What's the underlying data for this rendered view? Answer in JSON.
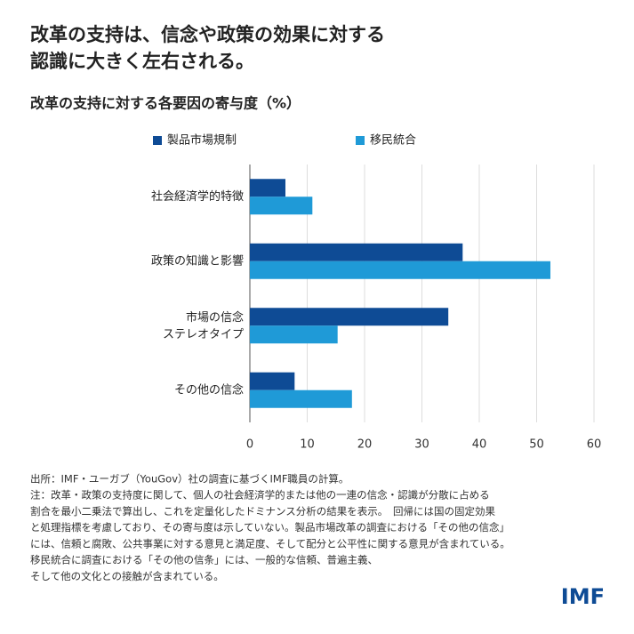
{
  "chart_data": {
    "type": "bar",
    "orientation": "horizontal",
    "title_lines": [
      "改革の支持は、信念や政策の効果に対する",
      "認識に大きく左右される。"
    ],
    "subtitle": "改革の支持に対する各要因の寄与度（%）",
    "categories": [
      "社会経済学的特徴",
      "政策の知識と影響",
      "市場の信念\nステレオタイプ",
      "その他の信念"
    ],
    "series": [
      {
        "name": "製品市場規制",
        "color": "#0e4b95",
        "values": [
          6.2,
          37.1,
          34.6,
          7.8
        ]
      },
      {
        "name": "移民統合",
        "color": "#1f9ad7",
        "values": [
          10.9,
          52.4,
          15.3,
          17.8
        ]
      }
    ],
    "xlim": [
      0,
      60
    ],
    "xticks": [
      0,
      10,
      20,
      30,
      40,
      50,
      60
    ],
    "grid": true,
    "source": "出所：IMF・ユーガブ（YouGov）社の調査に基づくIMF職員の計算。",
    "notes": [
      "注：改革・政策の支持度に関して、個人の社会経済学的または他の一連の信念・認識が分散に占める",
      "割合を最小二乗法で算出し、これを定量化したドミナンス分析の結果を表示。　回帰には国の固定効果",
      "と処理指標を考慮しており、その寄与度は示していない。製品市場改革の調査における「その他の信念」",
      "には、信頼と腐敗、公共事業に対する意見と満足度、そして配分と公平性に関する意見が含まれている。",
      "移民統合に調査における「その他の信条」には、一般的な信頼、普遍主義、",
      "そして他の文化との接触が含まれている。"
    ],
    "logo": "IMF"
  }
}
